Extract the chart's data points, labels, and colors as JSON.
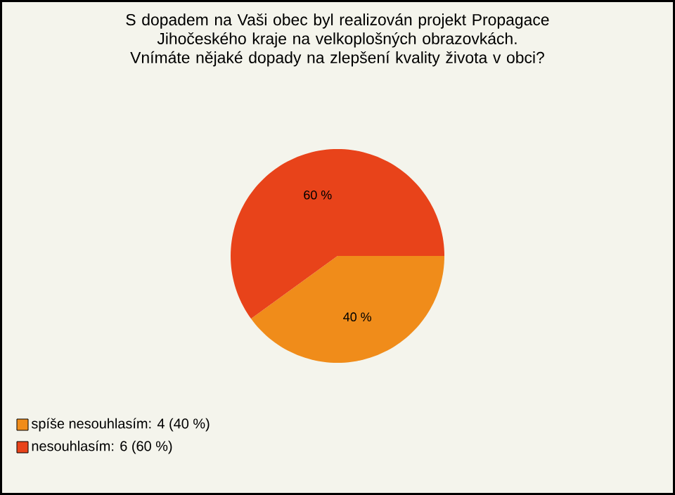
{
  "chart_data": {
    "type": "pie",
    "title": "S dopadem na Vaši obec byl realizován projekt Propagace Jihočeského kraje na velkoplošných obrazovkách. Vnímáte nějaké dopady na zlepšení kvality života v obci?",
    "categories": [
      "spíše nesouhlasím: 4 (40 %)",
      "nesouhlasím: 6 (60 %)"
    ],
    "values": [
      40,
      60
    ],
    "colors": [
      "#f08c1a",
      "#e8431a"
    ],
    "value_labels": [
      "40 %",
      "60 %"
    ],
    "legend": "bottom left"
  }
}
